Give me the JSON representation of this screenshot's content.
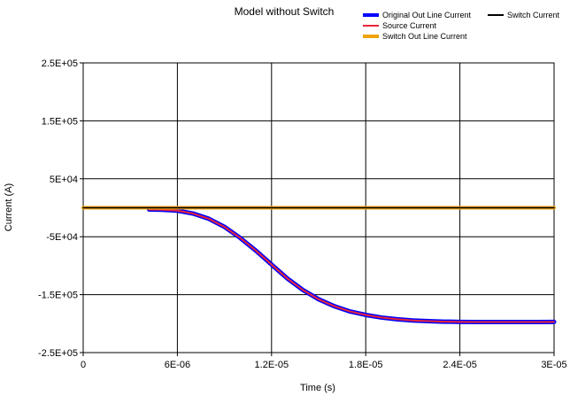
{
  "chart_data": {
    "type": "line",
    "title": "Model without Switch",
    "xlabel": "Time (s)",
    "ylabel": "Current (A)",
    "xlim": [
      0,
      3e-05
    ],
    "ylim": [
      -250000,
      250000
    ],
    "x_ticks": [
      0,
      6e-06,
      1.2e-05,
      1.8e-05,
      2.4e-05,
      3e-05
    ],
    "x_tick_labels": [
      "0",
      "6E-06",
      "1.2E-05",
      "1.8E-05",
      "2.4E-05",
      "3E-05"
    ],
    "y_ticks": [
      250000,
      150000,
      50000,
      -50000,
      -150000,
      -250000
    ],
    "y_tick_labels": [
      "2.5E+05",
      "1.5E+05",
      "5E+04",
      "-5E+04",
      "-1.5E+05",
      "-2.5E+05"
    ],
    "grid": true,
    "legend_position": "top-right",
    "series": [
      {
        "name": "Original Out Line Current",
        "color": "#0000FF",
        "x": [
          4.2e-06,
          5e-06,
          6e-06,
          7e-06,
          8e-06,
          9e-06,
          1e-05,
          1.1e-05,
          1.2e-05,
          1.3e-05,
          1.4e-05,
          1.5e-05,
          1.6e-05,
          1.7e-05,
          1.8e-05,
          1.9e-05,
          2e-05,
          2.1e-05,
          2.2e-05,
          2.3e-05,
          2.4e-05,
          2.5e-05,
          2.6e-05,
          2.7e-05,
          2.8e-05,
          2.9e-05,
          3e-05
        ],
        "y": [
          -3000,
          -3500,
          -5000,
          -10000,
          -19000,
          -33000,
          -52000,
          -74000,
          -98000,
          -122000,
          -142000,
          -158000,
          -170000,
          -179000,
          -185000,
          -189500,
          -192500,
          -194500,
          -195800,
          -196600,
          -197000,
          -197200,
          -197300,
          -197300,
          -197300,
          -197200,
          -197000
        ]
      },
      {
        "name": "Source Current",
        "color": "#E8253C",
        "x": [
          4.2e-06,
          5e-06,
          6e-06,
          7e-06,
          8e-06,
          9e-06,
          1e-05,
          1.1e-05,
          1.2e-05,
          1.3e-05,
          1.4e-05,
          1.5e-05,
          1.6e-05,
          1.7e-05,
          1.8e-05,
          1.9e-05,
          2e-05,
          2.1e-05,
          2.2e-05,
          2.3e-05,
          2.4e-05,
          2.5e-05,
          2.6e-05,
          2.7e-05,
          2.8e-05,
          2.9e-05,
          3e-05
        ],
        "y": [
          -3000,
          -3500,
          -5000,
          -10000,
          -19000,
          -33000,
          -52000,
          -74000,
          -98000,
          -122000,
          -142000,
          -158000,
          -170000,
          -179000,
          -185000,
          -189500,
          -192500,
          -194500,
          -195800,
          -196600,
          -197000,
          -197200,
          -197300,
          -197300,
          -197300,
          -197200,
          -197000
        ]
      },
      {
        "name": "Switch Out Line Current",
        "color": "#F0A30A",
        "x": [
          0,
          3e-05
        ],
        "y": [
          0,
          0
        ]
      },
      {
        "name": "Switch Current",
        "color": "#000000",
        "x": [
          0,
          3e-05
        ],
        "y": [
          0,
          0
        ]
      }
    ]
  }
}
